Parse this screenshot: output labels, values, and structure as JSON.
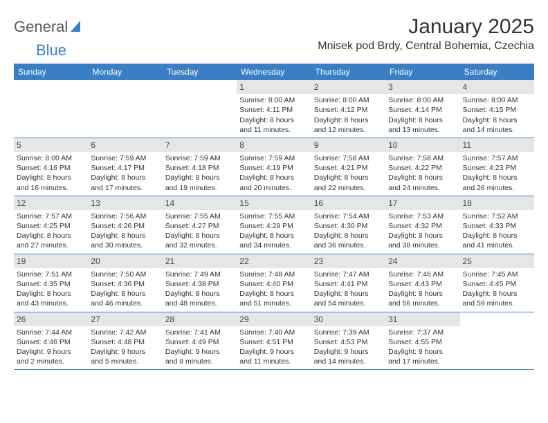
{
  "logo": {
    "part1": "General",
    "part2": "Blue"
  },
  "title": "January 2025",
  "subtitle": "Mnisek pod Brdy, Central Bohemia, Czechia",
  "colors": {
    "header_bg": "#3a7fc4",
    "header_text": "#ffffff",
    "daynum_bg": "#e6e6e6",
    "border": "#3a7fc4",
    "text": "#333333",
    "background": "#ffffff"
  },
  "dow": [
    "Sunday",
    "Monday",
    "Tuesday",
    "Wednesday",
    "Thursday",
    "Friday",
    "Saturday"
  ],
  "weeks": [
    [
      {
        "n": "",
        "empty": true
      },
      {
        "n": "",
        "empty": true
      },
      {
        "n": "",
        "empty": true
      },
      {
        "n": "1",
        "sunrise": "Sunrise: 8:00 AM",
        "sunset": "Sunset: 4:11 PM",
        "daylight1": "Daylight: 8 hours",
        "daylight2": "and 11 minutes."
      },
      {
        "n": "2",
        "sunrise": "Sunrise: 8:00 AM",
        "sunset": "Sunset: 4:12 PM",
        "daylight1": "Daylight: 8 hours",
        "daylight2": "and 12 minutes."
      },
      {
        "n": "3",
        "sunrise": "Sunrise: 8:00 AM",
        "sunset": "Sunset: 4:14 PM",
        "daylight1": "Daylight: 8 hours",
        "daylight2": "and 13 minutes."
      },
      {
        "n": "4",
        "sunrise": "Sunrise: 8:00 AM",
        "sunset": "Sunset: 4:15 PM",
        "daylight1": "Daylight: 8 hours",
        "daylight2": "and 14 minutes."
      }
    ],
    [
      {
        "n": "5",
        "sunrise": "Sunrise: 8:00 AM",
        "sunset": "Sunset: 4:16 PM",
        "daylight1": "Daylight: 8 hours",
        "daylight2": "and 16 minutes."
      },
      {
        "n": "6",
        "sunrise": "Sunrise: 7:59 AM",
        "sunset": "Sunset: 4:17 PM",
        "daylight1": "Daylight: 8 hours",
        "daylight2": "and 17 minutes."
      },
      {
        "n": "7",
        "sunrise": "Sunrise: 7:59 AM",
        "sunset": "Sunset: 4:18 PM",
        "daylight1": "Daylight: 8 hours",
        "daylight2": "and 19 minutes."
      },
      {
        "n": "8",
        "sunrise": "Sunrise: 7:59 AM",
        "sunset": "Sunset: 4:19 PM",
        "daylight1": "Daylight: 8 hours",
        "daylight2": "and 20 minutes."
      },
      {
        "n": "9",
        "sunrise": "Sunrise: 7:58 AM",
        "sunset": "Sunset: 4:21 PM",
        "daylight1": "Daylight: 8 hours",
        "daylight2": "and 22 minutes."
      },
      {
        "n": "10",
        "sunrise": "Sunrise: 7:58 AM",
        "sunset": "Sunset: 4:22 PM",
        "daylight1": "Daylight: 8 hours",
        "daylight2": "and 24 minutes."
      },
      {
        "n": "11",
        "sunrise": "Sunrise: 7:57 AM",
        "sunset": "Sunset: 4:23 PM",
        "daylight1": "Daylight: 8 hours",
        "daylight2": "and 26 minutes."
      }
    ],
    [
      {
        "n": "12",
        "sunrise": "Sunrise: 7:57 AM",
        "sunset": "Sunset: 4:25 PM",
        "daylight1": "Daylight: 8 hours",
        "daylight2": "and 27 minutes."
      },
      {
        "n": "13",
        "sunrise": "Sunrise: 7:56 AM",
        "sunset": "Sunset: 4:26 PM",
        "daylight1": "Daylight: 8 hours",
        "daylight2": "and 30 minutes."
      },
      {
        "n": "14",
        "sunrise": "Sunrise: 7:55 AM",
        "sunset": "Sunset: 4:27 PM",
        "daylight1": "Daylight: 8 hours",
        "daylight2": "and 32 minutes."
      },
      {
        "n": "15",
        "sunrise": "Sunrise: 7:55 AM",
        "sunset": "Sunset: 4:29 PM",
        "daylight1": "Daylight: 8 hours",
        "daylight2": "and 34 minutes."
      },
      {
        "n": "16",
        "sunrise": "Sunrise: 7:54 AM",
        "sunset": "Sunset: 4:30 PM",
        "daylight1": "Daylight: 8 hours",
        "daylight2": "and 36 minutes."
      },
      {
        "n": "17",
        "sunrise": "Sunrise: 7:53 AM",
        "sunset": "Sunset: 4:32 PM",
        "daylight1": "Daylight: 8 hours",
        "daylight2": "and 38 minutes."
      },
      {
        "n": "18",
        "sunrise": "Sunrise: 7:52 AM",
        "sunset": "Sunset: 4:33 PM",
        "daylight1": "Daylight: 8 hours",
        "daylight2": "and 41 minutes."
      }
    ],
    [
      {
        "n": "19",
        "sunrise": "Sunrise: 7:51 AM",
        "sunset": "Sunset: 4:35 PM",
        "daylight1": "Daylight: 8 hours",
        "daylight2": "and 43 minutes."
      },
      {
        "n": "20",
        "sunrise": "Sunrise: 7:50 AM",
        "sunset": "Sunset: 4:36 PM",
        "daylight1": "Daylight: 8 hours",
        "daylight2": "and 46 minutes."
      },
      {
        "n": "21",
        "sunrise": "Sunrise: 7:49 AM",
        "sunset": "Sunset: 4:38 PM",
        "daylight1": "Daylight: 8 hours",
        "daylight2": "and 48 minutes."
      },
      {
        "n": "22",
        "sunrise": "Sunrise: 7:48 AM",
        "sunset": "Sunset: 4:40 PM",
        "daylight1": "Daylight: 8 hours",
        "daylight2": "and 51 minutes."
      },
      {
        "n": "23",
        "sunrise": "Sunrise: 7:47 AM",
        "sunset": "Sunset: 4:41 PM",
        "daylight1": "Daylight: 8 hours",
        "daylight2": "and 54 minutes."
      },
      {
        "n": "24",
        "sunrise": "Sunrise: 7:46 AM",
        "sunset": "Sunset: 4:43 PM",
        "daylight1": "Daylight: 8 hours",
        "daylight2": "and 56 minutes."
      },
      {
        "n": "25",
        "sunrise": "Sunrise: 7:45 AM",
        "sunset": "Sunset: 4:45 PM",
        "daylight1": "Daylight: 8 hours",
        "daylight2": "and 59 minutes."
      }
    ],
    [
      {
        "n": "26",
        "sunrise": "Sunrise: 7:44 AM",
        "sunset": "Sunset: 4:46 PM",
        "daylight1": "Daylight: 9 hours",
        "daylight2": "and 2 minutes."
      },
      {
        "n": "27",
        "sunrise": "Sunrise: 7:42 AM",
        "sunset": "Sunset: 4:48 PM",
        "daylight1": "Daylight: 9 hours",
        "daylight2": "and 5 minutes."
      },
      {
        "n": "28",
        "sunrise": "Sunrise: 7:41 AM",
        "sunset": "Sunset: 4:49 PM",
        "daylight1": "Daylight: 9 hours",
        "daylight2": "and 8 minutes."
      },
      {
        "n": "29",
        "sunrise": "Sunrise: 7:40 AM",
        "sunset": "Sunset: 4:51 PM",
        "daylight1": "Daylight: 9 hours",
        "daylight2": "and 11 minutes."
      },
      {
        "n": "30",
        "sunrise": "Sunrise: 7:39 AM",
        "sunset": "Sunset: 4:53 PM",
        "daylight1": "Daylight: 9 hours",
        "daylight2": "and 14 minutes."
      },
      {
        "n": "31",
        "sunrise": "Sunrise: 7:37 AM",
        "sunset": "Sunset: 4:55 PM",
        "daylight1": "Daylight: 9 hours",
        "daylight2": "and 17 minutes."
      },
      {
        "n": "",
        "empty": true
      }
    ]
  ]
}
